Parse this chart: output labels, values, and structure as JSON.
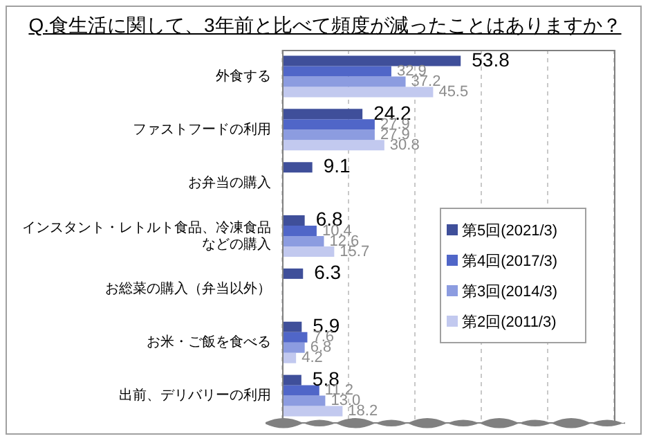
{
  "chart_data": {
    "type": "bar",
    "orientation": "horizontal",
    "title": "Q.食生活に関して、3年前と比べて頻度が減ったことはありますか？",
    "categories": [
      "外食する",
      "ファストフードの利用",
      "お弁当の購入",
      "インスタント・レトルト食品、冷凍食品などの購入",
      "お総菜の購入（弁当以外）",
      "お米・ご飯を食べる",
      "出前、デリバリーの利用"
    ],
    "series": [
      {
        "name": "第5回(2021/3)",
        "color": "#3f4f9a",
        "values": [
          53.8,
          24.2,
          9.1,
          6.8,
          6.3,
          5.9,
          5.8
        ],
        "value_labels": [
          "53.8",
          "24.2",
          "9.1",
          "6.8",
          "6.3",
          "5.9",
          "5.8"
        ]
      },
      {
        "name": "第4回(2017/3)",
        "color": "#5066c8",
        "values": [
          32.9,
          27.9,
          null,
          10.4,
          null,
          7.6,
          11.2
        ],
        "value_labels": [
          "32.9",
          "27.9",
          null,
          "10.4",
          null,
          "7.6",
          "11.2"
        ]
      },
      {
        "name": "第3回(2014/3)",
        "color": "#8c9ce0",
        "values": [
          37.2,
          27.9,
          null,
          12.6,
          null,
          6.8,
          13.0
        ],
        "value_labels": [
          "37.2",
          "27.9",
          null,
          "12.6",
          null,
          "6.8",
          "13.0"
        ]
      },
      {
        "name": "第2回(2011/3)",
        "color": "#c2c9ef",
        "values": [
          45.5,
          30.8,
          null,
          15.7,
          null,
          4.2,
          18.2
        ],
        "value_labels": [
          "45.5",
          "30.8",
          null,
          "15.7",
          null,
          "4.2",
          "18.2"
        ]
      }
    ],
    "xlim": [
      0,
      100
    ],
    "xticks": [
      {
        "value": 0,
        "label": null
      },
      {
        "value": 20,
        "label": null
      },
      {
        "value": 40,
        "label": null
      },
      {
        "value": 60,
        "label": null
      },
      {
        "value": 80,
        "label": null
      },
      {
        "value": 100,
        "label": null
      }
    ],
    "tick_labels": "y",
    "grid": "x",
    "legend": "right"
  }
}
